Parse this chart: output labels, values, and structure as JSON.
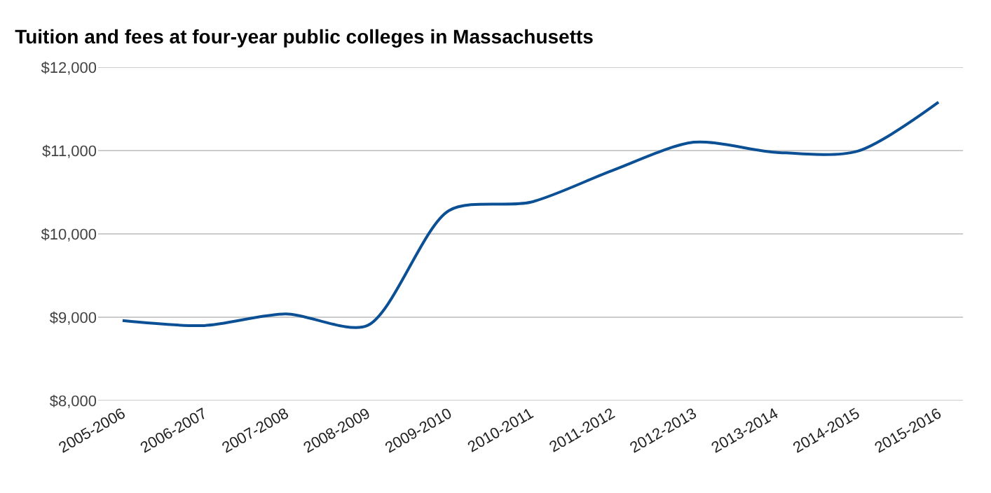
{
  "chart_data": {
    "type": "line",
    "title": "Tuition and fees at four-year public colleges in Massachusetts",
    "categories": [
      "2005-2006",
      "2006-2007",
      "2007-2008",
      "2008-2009",
      "2009-2010",
      "2010-2011",
      "2011-2012",
      "2012-2013",
      "2013-2014",
      "2014-2015",
      "2015-2016"
    ],
    "series": [
      {
        "color": "#0b4f94",
        "values": [
          8960,
          8900,
          9040,
          8900,
          10280,
          10380,
          10760,
          11100,
          10980,
          10990,
          11580
        ]
      }
    ],
    "ylim": [
      8000,
      12000
    ],
    "yticks": [
      {
        "value": 8000,
        "label": "$8,000"
      },
      {
        "value": 9000,
        "label": "$9,000"
      },
      {
        "value": 10000,
        "label": "$10,000"
      },
      {
        "value": 11000,
        "label": "$11,000"
      },
      {
        "value": 12000,
        "label": "$12,000"
      }
    ],
    "grid": "y",
    "marker": "none",
    "line_style": "solid"
  }
}
